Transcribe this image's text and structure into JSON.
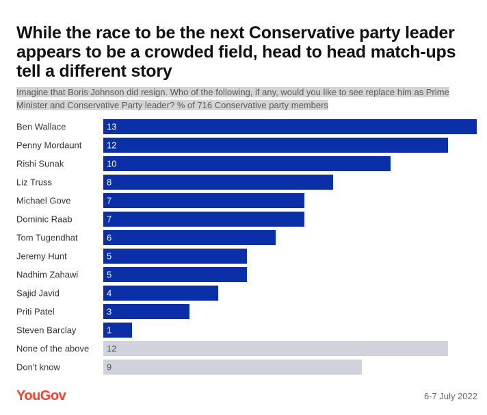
{
  "header": {
    "title": "While the race to be the next Conservative party leader appears to be a crowded field, head to head match-ups tell a different story",
    "subtitle": "Imagine that Boris Johnson did resign. Who of the following, if any, would you like to see replace him as Prime Minister and Conservative Party leader? % of 716 Conservative party members"
  },
  "footer": {
    "logo": "YouGov",
    "date": "6-7 July 2022"
  },
  "colors": {
    "candidate_bar": "#0b2fa7",
    "other_bar": "#d0d2dc",
    "logo": "#ff412c"
  },
  "chart_data": {
    "type": "bar",
    "orientation": "horizontal",
    "categories": [
      "Ben Wallace",
      "Penny Mordaunt",
      "Rishi Sunak",
      "Liz Truss",
      "Michael Gove",
      "Dominic Raab",
      "Tom Tugendhat",
      "Jeremy Hunt",
      "Nadhim Zahawi",
      "Sajid Javid",
      "Priti Patel",
      "Steven Barclay",
      "None of the above",
      "Don't know"
    ],
    "values": [
      13,
      12,
      10,
      8,
      7,
      7,
      6,
      5,
      5,
      4,
      3,
      1,
      12,
      9
    ],
    "bar_group": [
      "candidate",
      "candidate",
      "candidate",
      "candidate",
      "candidate",
      "candidate",
      "candidate",
      "candidate",
      "candidate",
      "candidate",
      "candidate",
      "candidate",
      "other",
      "other"
    ],
    "xlim": [
      0,
      13
    ],
    "grid": false,
    "legend": "none"
  }
}
